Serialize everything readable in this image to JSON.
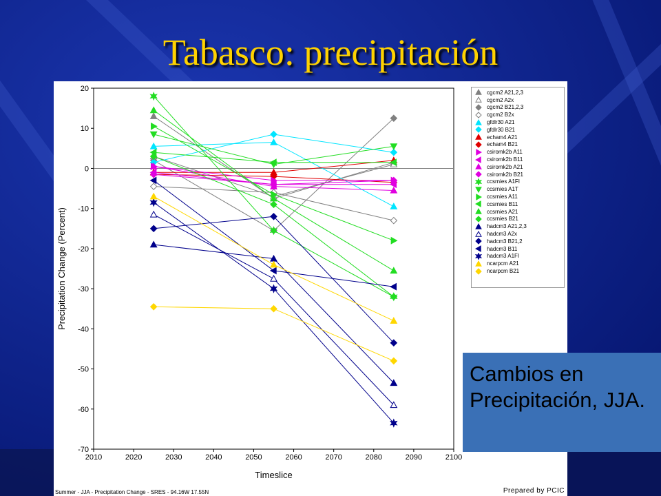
{
  "slide": {
    "title": "Tabasco: precipitación",
    "callout_text": "Cambios en Precipitación, JJA.",
    "footer_left": "Summer - JJA - Precipitation Change - SRES - 94.16W 17.55N",
    "footer_right": "Prepared by PCIC",
    "colors": {
      "background": "#0a1f8a",
      "title": "#ffd200",
      "callout": "#3a70b6"
    }
  },
  "chart_data": {
    "type": "line",
    "xlabel": "Timeslice",
    "ylabel": "Precipitation Change (Percent)",
    "xlim": [
      2010,
      2100
    ],
    "ylim": [
      -70,
      20
    ],
    "x_ticks": [
      2010,
      2020,
      2030,
      2040,
      2050,
      2060,
      2070,
      2080,
      2090,
      2100
    ],
    "y_ticks": [
      20,
      10,
      0,
      -10,
      -20,
      -30,
      -40,
      -50,
      -60,
      -70
    ],
    "x": [
      2025,
      2055,
      2085
    ],
    "grid": false,
    "legend_position": "right",
    "series": [
      {
        "name": "cgcm2 A21,2,3",
        "color": "#808080",
        "marker": "triangle",
        "values": [
          13,
          -7.5,
          1.5
        ]
      },
      {
        "name": "cgcm2 A2x",
        "color": "#808080",
        "marker": "triangle-open",
        "values": [
          3,
          -7,
          1
        ]
      },
      {
        "name": "cgcm2 B21,2,3",
        "color": "#808080",
        "marker": "diamond",
        "values": [
          2,
          -15.5,
          12.5
        ]
      },
      {
        "name": "cgcm2 B2x",
        "color": "#808080",
        "marker": "diamond-open",
        "values": [
          -4.5,
          -6,
          -13
        ]
      },
      {
        "name": "gfdlr30 A21",
        "color": "#00e5ff",
        "marker": "triangle",
        "values": [
          5.5,
          6.5,
          -9.5
        ]
      },
      {
        "name": "gfdlr30 B21",
        "color": "#00e5ff",
        "marker": "diamond",
        "values": [
          1.5,
          8.5,
          4
        ]
      },
      {
        "name": "echam4 A21",
        "color": "#e00000",
        "marker": "triangle",
        "values": [
          -1,
          -1,
          2
        ]
      },
      {
        "name": "echam4 B21",
        "color": "#e00000",
        "marker": "diamond",
        "values": [
          -1.5,
          -2,
          -3.5
        ]
      },
      {
        "name": "csiromk2b A11",
        "color": "#e000e0",
        "marker": "triangle-right",
        "values": [
          0.5,
          -3,
          -3
        ]
      },
      {
        "name": "csiromk2b B11",
        "color": "#e000e0",
        "marker": "triangle-left",
        "values": [
          -1,
          -4,
          -4
        ]
      },
      {
        "name": "csiromk2b A21",
        "color": "#e000e0",
        "marker": "triangle",
        "values": [
          0.5,
          -4.5,
          -5.5
        ]
      },
      {
        "name": "csiromk2b B21",
        "color": "#e000e0",
        "marker": "diamond",
        "values": [
          -1.5,
          -4,
          -3
        ]
      },
      {
        "name": "ccsrnies A1FI",
        "color": "#22dd22",
        "marker": "star",
        "values": [
          18,
          -15.5,
          -32
        ]
      },
      {
        "name": "ccsrnies A1T",
        "color": "#22dd22",
        "marker": "triangle-down",
        "values": [
          8.5,
          1,
          5.5
        ]
      },
      {
        "name": "ccsrnies A11",
        "color": "#22dd22",
        "marker": "triangle-right",
        "values": [
          10.5,
          -6.5,
          -18
        ]
      },
      {
        "name": "ccsrnies B11",
        "color": "#22dd22",
        "marker": "triangle-left",
        "values": [
          4,
          1.5,
          1.5
        ]
      },
      {
        "name": "ccsrnies A21",
        "color": "#22dd22",
        "marker": "triangle",
        "values": [
          14.5,
          -7.5,
          -25.5
        ]
      },
      {
        "name": "ccsrnies B21",
        "color": "#22dd22",
        "marker": "diamond",
        "values": [
          3,
          -9,
          -32
        ]
      },
      {
        "name": "hadcm3 A21,2,3",
        "color": "#00008b",
        "marker": "triangle",
        "values": [
          -19,
          -22.5,
          -53.5
        ]
      },
      {
        "name": "hadcm3 A2x",
        "color": "#00008b",
        "marker": "triangle-open",
        "values": [
          -11.5,
          -27.5,
          -59
        ]
      },
      {
        "name": "hadcm3 B21,2",
        "color": "#00008b",
        "marker": "diamond",
        "values": [
          -15,
          -12,
          -43.5
        ]
      },
      {
        "name": "hadcm3 B11",
        "color": "#00008b",
        "marker": "triangle-left",
        "values": [
          -3,
          -25.5,
          -29.5
        ]
      },
      {
        "name": "hadcm3 A1FI",
        "color": "#00008b",
        "marker": "star",
        "values": [
          -8.5,
          -30,
          -63.5
        ]
      },
      {
        "name": "ncarpcm A21",
        "color": "#ffd700",
        "marker": "triangle",
        "values": [
          -7,
          -24,
          -38
        ]
      },
      {
        "name": "ncarpcm B21",
        "color": "#ffd700",
        "marker": "diamond",
        "values": [
          -34.5,
          -35,
          -48
        ]
      }
    ]
  }
}
